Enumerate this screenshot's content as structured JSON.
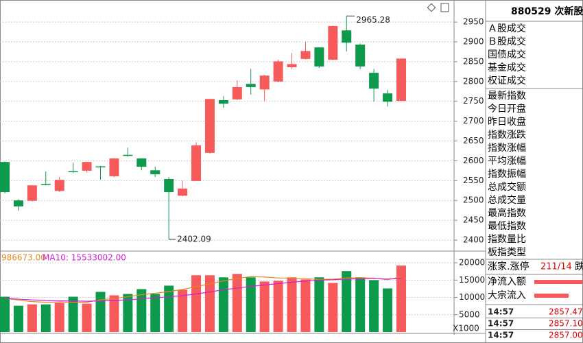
{
  "chart_data": [
    {
      "type": "candlestick",
      "open": [
        2597,
        2500,
        2499,
        2542,
        2524,
        2574,
        2575,
        2586,
        2561,
        2615,
        2606,
        2576,
        2554,
        2512,
        2549,
        2620,
        2753,
        2755,
        2794,
        2780,
        2800,
        2836,
        2857,
        2886,
        2855,
        2929,
        2893,
        2822,
        2770,
        2751
      ],
      "high": [
        2598,
        2503,
        2538,
        2573,
        2559,
        2595,
        2598,
        2587,
        2607,
        2633,
        2607,
        2585,
        2559,
        2550,
        2647,
        2757,
        2763,
        2803,
        2832,
        2817,
        2855,
        2872,
        2900,
        2887,
        2941,
        2965.28,
        2896,
        2832,
        2779,
        2858
      ],
      "low": [
        2518,
        2474,
        2497,
        2538,
        2521,
        2569,
        2570,
        2552,
        2559,
        2610,
        2576,
        2559,
        2402.09,
        2510,
        2549,
        2618,
        2734,
        2753,
        2767,
        2751,
        2798,
        2832,
        2855,
        2834,
        2854,
        2876,
        2831,
        2749,
        2737,
        2751
      ],
      "close": [
        2521,
        2485,
        2538,
        2540,
        2552,
        2572,
        2597,
        2584,
        2606,
        2613,
        2585,
        2566,
        2521,
        2530,
        2639,
        2756,
        2744,
        2786,
        2786,
        2815,
        2851,
        2844,
        2877,
        2838,
        2940,
        2898,
        2838,
        2782,
        2749,
        2858
      ],
      "ylim": [
        2374,
        2997
      ],
      "yticks": [
        2400,
        2450,
        2500,
        2550,
        2600,
        2650,
        2700,
        2750,
        2800,
        2850,
        2900,
        2950
      ],
      "up_color": "#f65a5a",
      "down_color": "#0e9a4c",
      "grid": true
    },
    {
      "type": "volume",
      "values": [
        10200,
        7600,
        8000,
        8000,
        8400,
        10200,
        8200,
        11600,
        10600,
        11000,
        12400,
        11000,
        13400,
        12200,
        16400,
        16400,
        15800,
        16800,
        15800,
        14600,
        14800,
        15800,
        15200,
        15800,
        14200,
        17600,
        15800,
        15000,
        12600,
        19200
      ],
      "series": [
        {
          "name": "986673.00",
          "color": "#e08a1e",
          "values": [
            9800,
            9200,
            8800,
            8600,
            8700,
            8600,
            8600,
            9300,
            9700,
            10200,
            10800,
            11200,
            11700,
            12300,
            13100,
            13900,
            14800,
            15500,
            16000,
            15900,
            15600,
            15600,
            15400,
            15200,
            15300,
            15600,
            15700,
            15600,
            15100,
            15986.673
          ]
        },
        {
          "name": "MA10: 15533002.00",
          "color": "#d81ad8",
          "values": [
            9700,
            9500,
            9300,
            9100,
            9000,
            9000,
            8900,
            9000,
            9100,
            9300,
            9600,
            9900,
            10200,
            10500,
            11000,
            11600,
            12200,
            12700,
            13200,
            13600,
            14000,
            14400,
            14700,
            15000,
            15100,
            15300,
            15400,
            15500,
            15300,
            15533.002
          ]
        }
      ],
      "ylim": [
        0,
        22200
      ],
      "yticks": [
        5000,
        10000,
        15000,
        20000
      ],
      "unit_label": "X1000",
      "up_color": "#f65a5a",
      "down_color": "#0e9a4c",
      "grid": true
    }
  ],
  "side_panel": {
    "title": "880529 次新股",
    "trade_rows": [
      "Ａ股成交",
      "Ｂ股成交",
      "国债成交",
      "基金成交",
      "权证成交"
    ],
    "index_rows": [
      "最新指数",
      "今日开盘",
      "昨日收盘",
      "指数涨跌",
      "指数涨幅",
      "平均涨幅",
      "指数振幅",
      "总成交额",
      "总成交量",
      "最高指数",
      "最低指数",
      "指数量比",
      "板指类型"
    ],
    "rise_label": "涨家.涨停",
    "rise_value": "211/14",
    "fall_label": "跌",
    "flow_rows": [
      "净流入额",
      "大宗流入"
    ],
    "ticks": [
      {
        "time": "14:57",
        "price": "2857.47"
      },
      {
        "time": "14:57",
        "price": "2857.10"
      },
      {
        "time": "14:57",
        "price": "2857.00"
      }
    ]
  }
}
